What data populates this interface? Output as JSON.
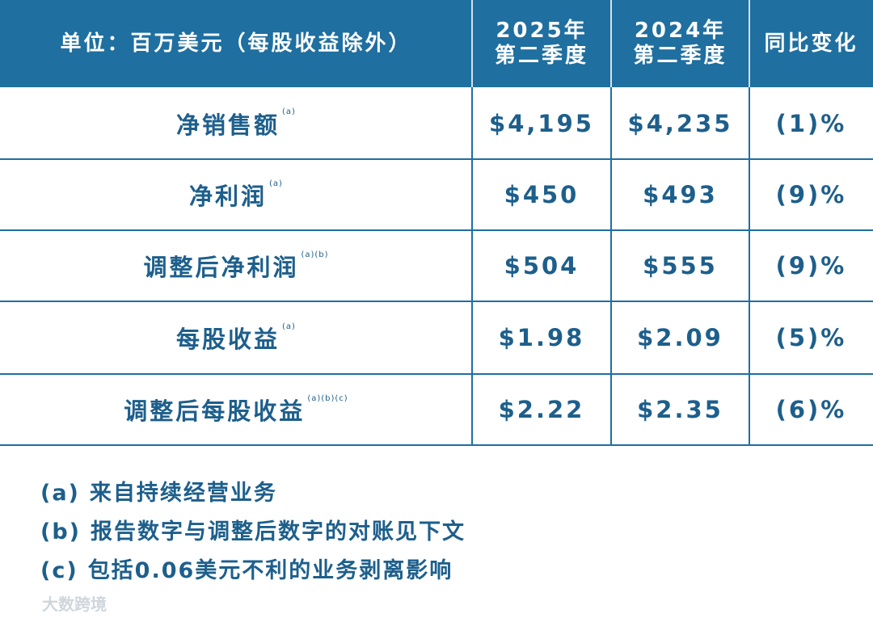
{
  "header": {
    "columns": [
      {
        "lines": [
          "单位：百万美元（每股收益除外）"
        ]
      },
      {
        "lines": [
          "2025年",
          "第二季度"
        ]
      },
      {
        "lines": [
          "2024年",
          "第二季度"
        ]
      },
      {
        "lines": [
          "同比变化"
        ]
      }
    ]
  },
  "table": {
    "rows": [
      {
        "label": "净销售额",
        "note": "(a)",
        "cells": [
          "$4,195",
          "$4,235",
          "(1)%"
        ]
      },
      {
        "label": "净利润",
        "note": "(a)",
        "cells": [
          "$450",
          "$493",
          "(9)%"
        ]
      },
      {
        "label": "调整后净利润",
        "note": "(a)(b)",
        "cells": [
          "$504",
          "$555",
          "(9)%"
        ]
      },
      {
        "label": "每股收益",
        "note": "(a)",
        "cells": [
          "$1.98",
          "$2.09",
          "(5)%"
        ]
      },
      {
        "label": "调整后每股收益",
        "note": "(a)(b)(c)",
        "cells": [
          "$2.22",
          "$2.35",
          "(6)%"
        ]
      }
    ]
  },
  "notes": [
    {
      "marker": "(a)",
      "text": "来自持续经营业务"
    },
    {
      "marker": "(b)",
      "text": "报告数字与调整后数字的对账见下文"
    },
    {
      "marker": "(c)",
      "text": "包括0.06美元不利的业务剥离影响"
    }
  ],
  "watermark": "大数跨境"
}
